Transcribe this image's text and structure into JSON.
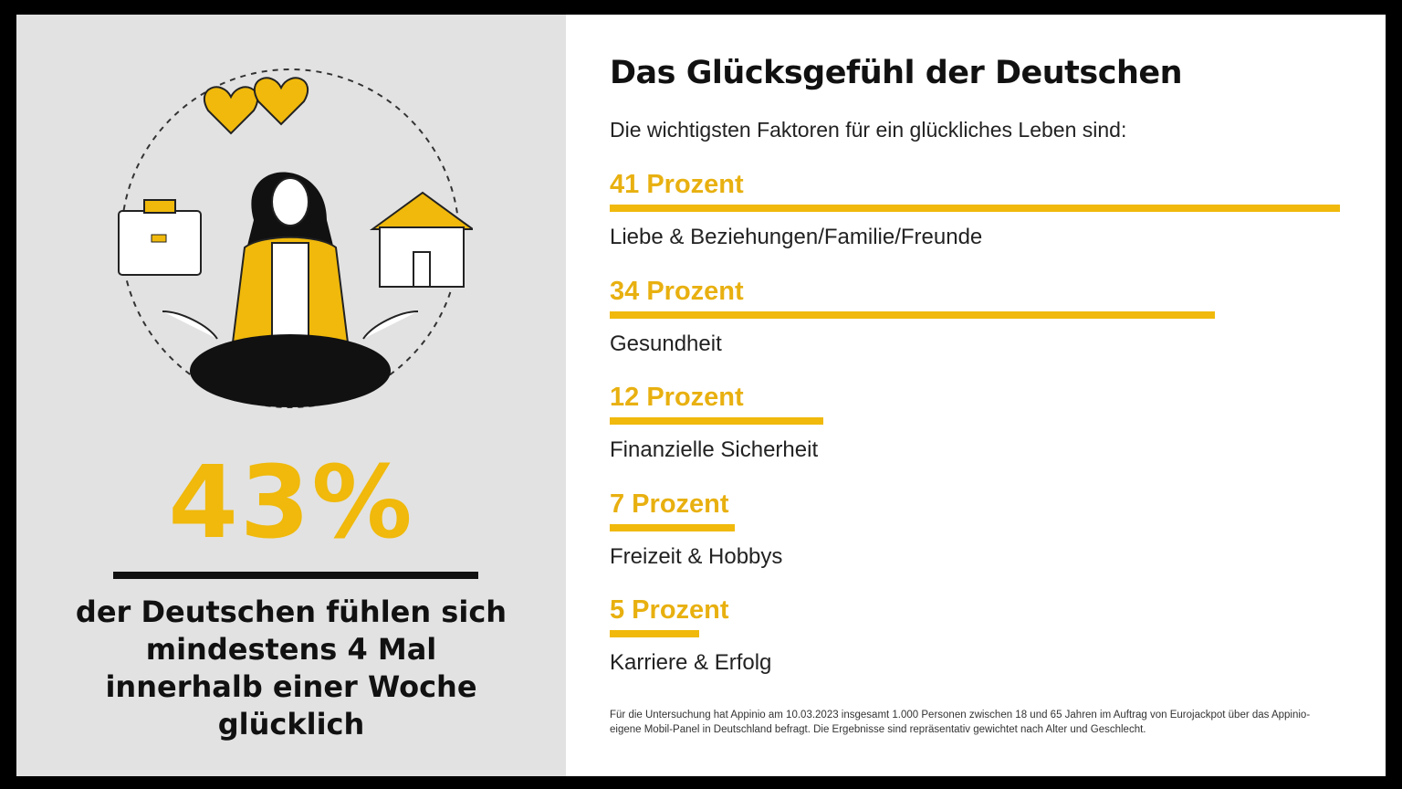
{
  "left": {
    "headline_value": "43%",
    "headline_text": "der Deutschen fühlen sich mindestens 4 Mal innerhalb einer Woche glücklich",
    "accent": "#f0b90b"
  },
  "chart_data": {
    "type": "bar",
    "orientation": "horizontal",
    "title": "Das Glücksgefühl der Deutschen",
    "subtitle": "Die wichtigsten Faktoren für ein glückliches Leben sind:",
    "unit": "Prozent",
    "items": [
      {
        "value": 41,
        "value_label": "41 Prozent",
        "label": "Liebe & Beziehungen/Familie/Freunde"
      },
      {
        "value": 34,
        "value_label": "34 Prozent",
        "label": "Gesundheit"
      },
      {
        "value": 12,
        "value_label": "12 Prozent",
        "label": "Finanzielle Sicherheit"
      },
      {
        "value": 7,
        "value_label": "7 Prozent",
        "label": "Freizeit & Hobbys"
      },
      {
        "value": 5,
        "value_label": "5 Prozent",
        "label": "Karriere & Erfolg"
      }
    ],
    "bar_color": "#f0b90b",
    "footnote": "Für die Untersuchung hat Appinio am 10.03.2023 insgesamt 1.000 Personen zwischen 18 und 65 Jahren im Auftrag von Eurojackpot über das Appinio-eigene Mobil-Panel in Deutschland befragt. Die Ergebnisse sind repräsentativ gewichtet nach Alter und Geschlecht."
  }
}
